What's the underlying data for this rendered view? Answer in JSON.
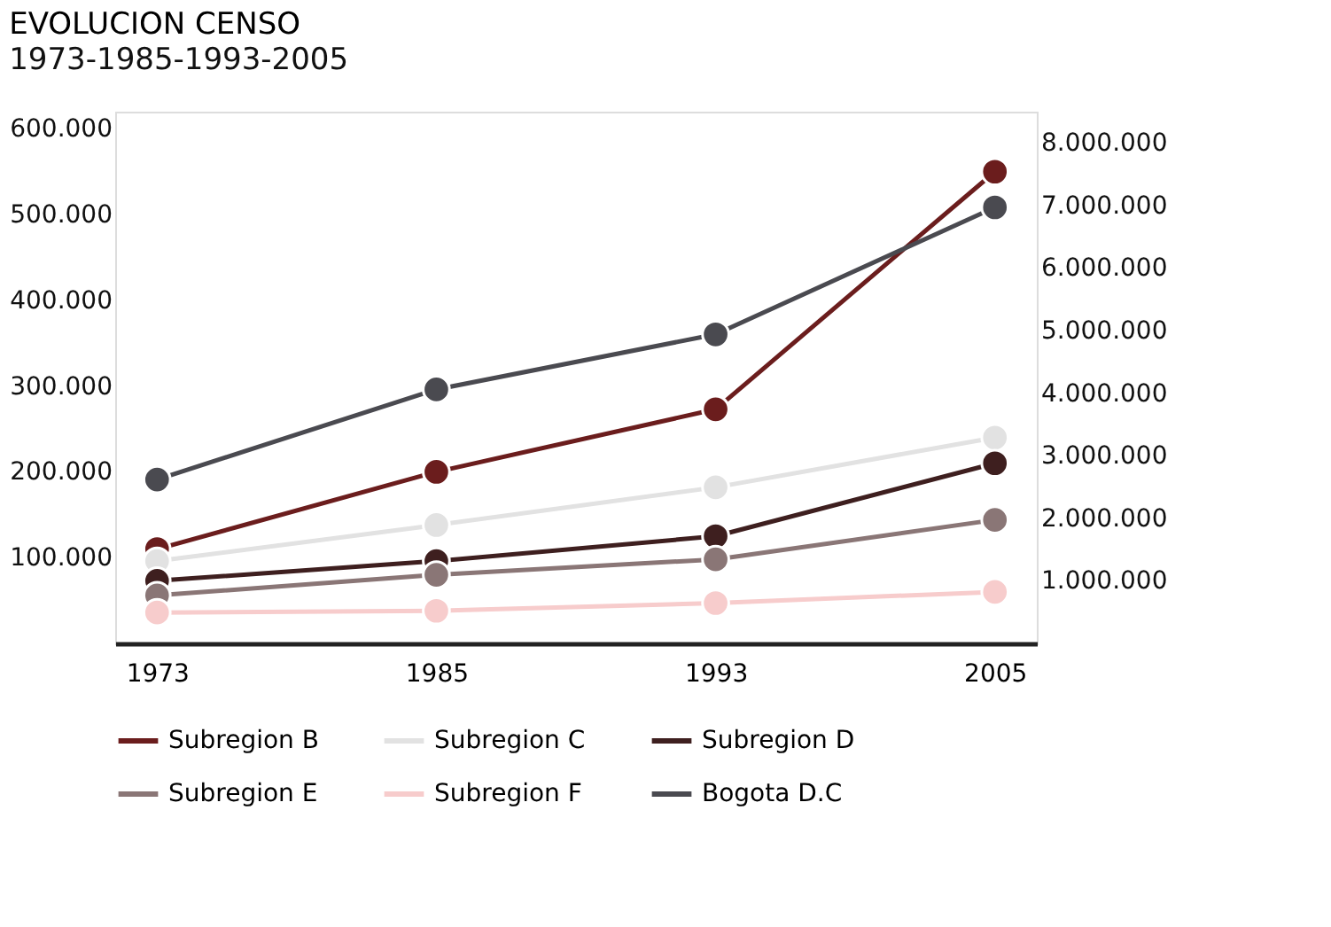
{
  "chart_data": {
    "type": "line",
    "title": "EVOLUCION CENSO",
    "subtitle": "1973-1985-1993-2005",
    "categories": [
      "1973",
      "1985",
      "1993",
      "2005"
    ],
    "series": [
      {
        "name": "Subregion B",
        "color": "#6b1d1d",
        "values": [
          110000,
          200000,
          273000,
          550000
        ]
      },
      {
        "name": "Subregion C",
        "color": "#e2e2e2",
        "values": [
          96000,
          138000,
          182000,
          240000
        ]
      },
      {
        "name": "Subregion D",
        "color": "#3e1f1f",
        "values": [
          73000,
          96000,
          125000,
          210000
        ]
      },
      {
        "name": "Subregion E",
        "color": "#8a7676",
        "values": [
          56000,
          80000,
          98000,
          144000
        ]
      },
      {
        "name": "Subregion F",
        "color": "#f7cccc",
        "values": [
          36000,
          38000,
          47000,
          60000
        ]
      },
      {
        "name": "Bogota D.C",
        "color": "#4a4a50",
        "axis": "y2",
        "values": [
          2620000,
          4060000,
          4940000,
          6970000
        ]
      }
    ],
    "ylim": [
      0,
      620000
    ],
    "yticks": [
      {
        "value": 100000,
        "label": "100.000"
      },
      {
        "value": 200000,
        "label": "200.000"
      },
      {
        "value": 300000,
        "label": "300.000"
      },
      {
        "value": 400000,
        "label": "400.000"
      },
      {
        "value": 500000,
        "label": "500.000"
      },
      {
        "value": 600000,
        "label": "600.000"
      }
    ],
    "y2lim": [
      0,
      8500000
    ],
    "y2ticks": [
      {
        "value": 1000000,
        "label": "1.000.000"
      },
      {
        "value": 2000000,
        "label": "2.000.000"
      },
      {
        "value": 3000000,
        "label": "3.000.000"
      },
      {
        "value": 4000000,
        "label": "4.000.000"
      },
      {
        "value": 5000000,
        "label": "5.000.000"
      },
      {
        "value": 6000000,
        "label": "6.000.000"
      },
      {
        "value": 7000000,
        "label": "7.000.000"
      },
      {
        "value": 8000000,
        "label": "8.000.000"
      }
    ],
    "grid": false,
    "legend": "bottom",
    "marker": "circle",
    "line_style": "solid"
  }
}
